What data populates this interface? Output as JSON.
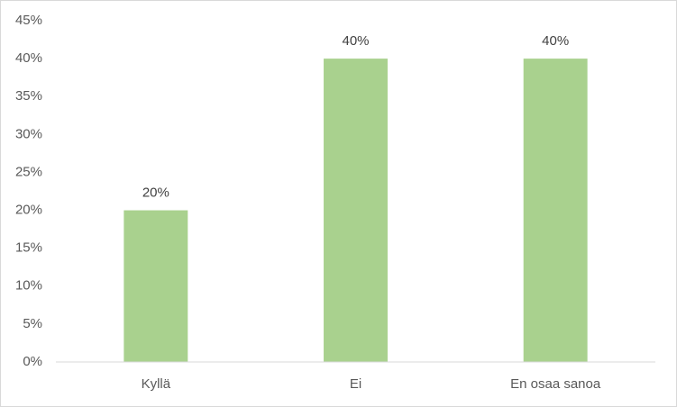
{
  "chart_data": {
    "type": "bar",
    "categories": [
      "Kyllä",
      "Ei",
      "En osaa sanoa"
    ],
    "values": [
      20,
      40,
      40
    ],
    "value_labels": [
      "20%",
      "40%",
      "40%"
    ],
    "color": "#a9d18e",
    "ylim": [
      0,
      45
    ],
    "yticks": [
      {
        "value": 0,
        "label": "0%"
      },
      {
        "value": 5,
        "label": "5%"
      },
      {
        "value": 10,
        "label": "10%"
      },
      {
        "value": 15,
        "label": "15%"
      },
      {
        "value": 20,
        "label": "20%"
      },
      {
        "value": 25,
        "label": "25%"
      },
      {
        "value": 30,
        "label": "30%"
      },
      {
        "value": 35,
        "label": "35%"
      },
      {
        "value": 40,
        "label": "40%"
      },
      {
        "value": 45,
        "label": "45%"
      }
    ],
    "grid": false
  }
}
